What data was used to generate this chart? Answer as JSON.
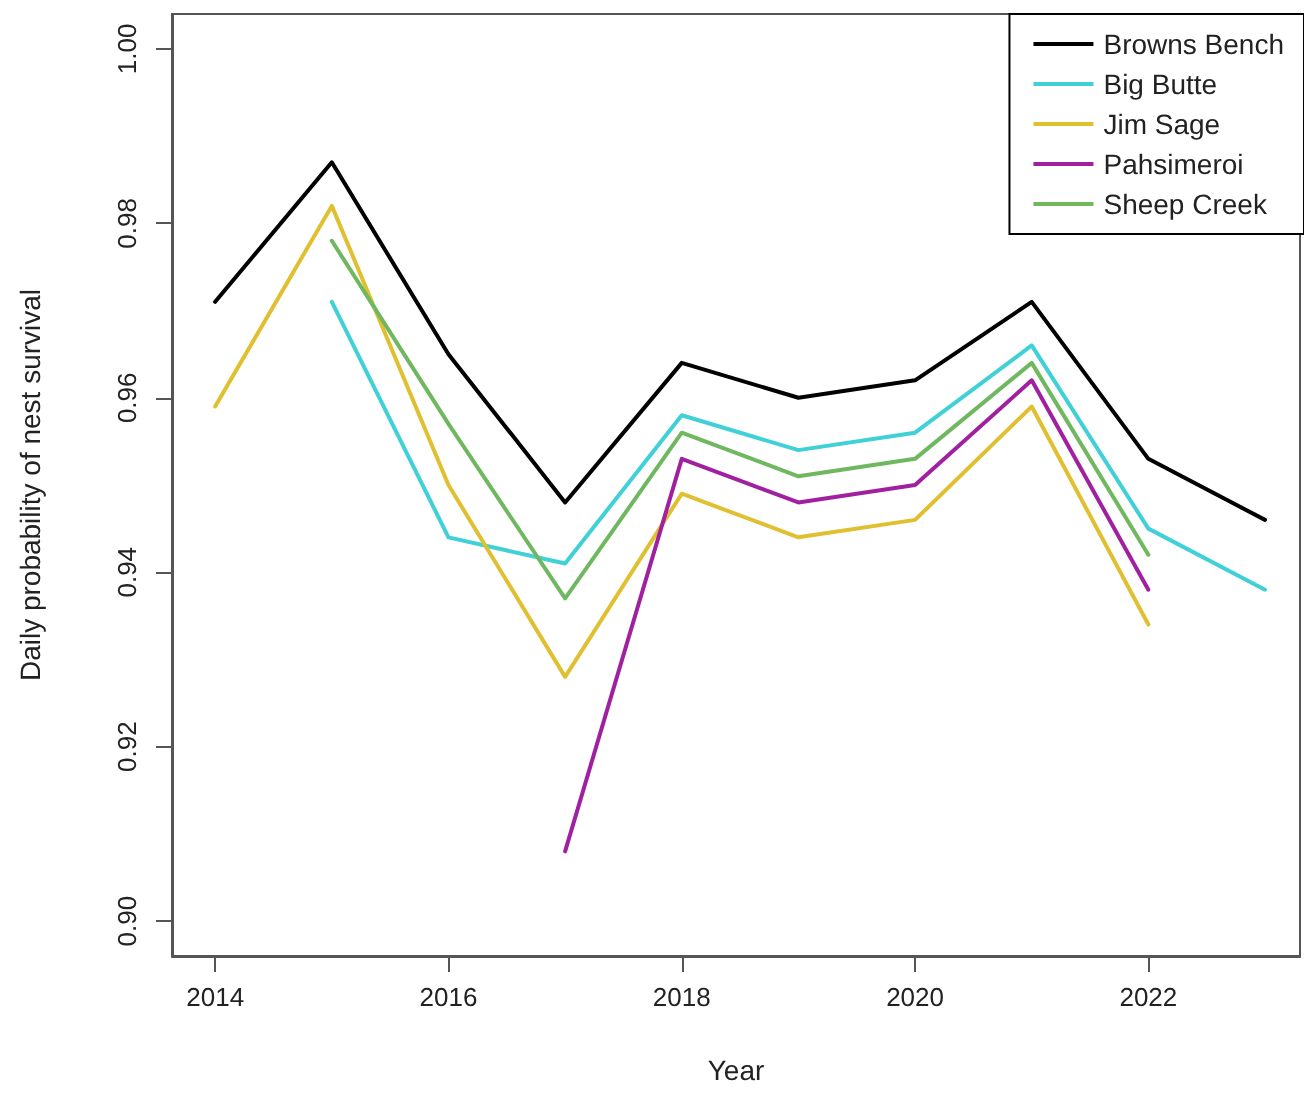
{
  "chart_data": {
    "type": "line",
    "xlabel": "Year",
    "ylabel": "Daily probability of nest survival",
    "x": [
      2014,
      2015,
      2016,
      2017,
      2018,
      2019,
      2020,
      2021,
      2022,
      2023
    ],
    "series": [
      {
        "name": "Browns Bench",
        "color": "#000000",
        "values": [
          0.971,
          0.987,
          0.965,
          0.948,
          0.964,
          0.96,
          0.962,
          0.971,
          0.953,
          0.946
        ]
      },
      {
        "name": "Big Butte",
        "color": "#40d0d8",
        "values": [
          null,
          0.971,
          0.944,
          0.941,
          0.958,
          0.954,
          0.956,
          0.966,
          0.945,
          0.938
        ]
      },
      {
        "name": "Jim Sage",
        "color": "#e0c030",
        "values": [
          0.959,
          0.982,
          0.95,
          0.928,
          0.949,
          0.944,
          0.946,
          0.959,
          0.934,
          null
        ]
      },
      {
        "name": "Pahsimeroi",
        "color": "#a020a0",
        "values": [
          null,
          null,
          null,
          0.908,
          0.953,
          0.948,
          0.95,
          0.962,
          0.938,
          null
        ]
      },
      {
        "name": "Sheep Creek",
        "color": "#70b860",
        "values": [
          null,
          0.978,
          0.957,
          0.937,
          0.956,
          0.951,
          0.953,
          0.964,
          0.942,
          null
        ]
      }
    ],
    "xlim": [
      2013.63,
      2023.3
    ],
    "xticks": [
      2014,
      2016,
      2018,
      2020,
      2022
    ],
    "ylim": [
      0.896,
      1.004
    ],
    "yticks": [
      {
        "value": 0.9,
        "label": "0.90"
      },
      {
        "value": 0.92,
        "label": "0.92"
      },
      {
        "value": 0.94,
        "label": "0.94"
      },
      {
        "value": 0.96,
        "label": "0.96"
      },
      {
        "value": 0.98,
        "label": "0.98"
      },
      {
        "value": 1.0,
        "label": "1.00"
      }
    ],
    "grid": false,
    "legend": "top right",
    "marker": "none",
    "line_style": "solid"
  }
}
